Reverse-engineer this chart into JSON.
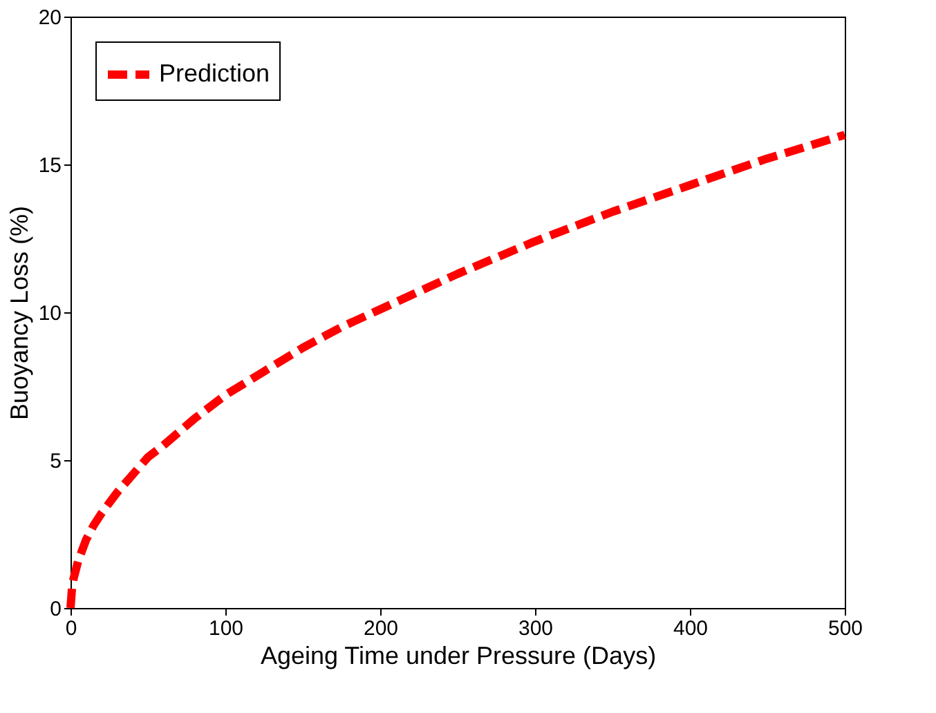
{
  "chart_data": {
    "type": "line",
    "xlabel": "Ageing Time under Pressure (Days)",
    "ylabel": "Buoyancy Loss (%)",
    "x": [
      0,
      1,
      2,
      5,
      10,
      15,
      20,
      30,
      40,
      50,
      60,
      80,
      100,
      125,
      150,
      175,
      200,
      250,
      300,
      350,
      400,
      450,
      500
    ],
    "series": [
      {
        "name": "Prediction",
        "color": "#ff0000",
        "values": [
          0,
          0.7,
          1.0,
          1.6,
          2.3,
          2.8,
          3.2,
          3.9,
          4.5,
          5.1,
          5.5,
          6.4,
          7.2,
          8.0,
          8.8,
          9.5,
          10.1,
          11.3,
          12.4,
          13.4,
          14.3,
          15.2,
          16.0
        ]
      }
    ],
    "xlim": [
      0,
      500
    ],
    "xticks": [
      0,
      100,
      200,
      300,
      400,
      500
    ],
    "ylim": [
      0,
      20
    ],
    "yticks": [
      0,
      5,
      10,
      15,
      20
    ],
    "line_style": "dashed",
    "legend": "top left",
    "grid": false
  }
}
